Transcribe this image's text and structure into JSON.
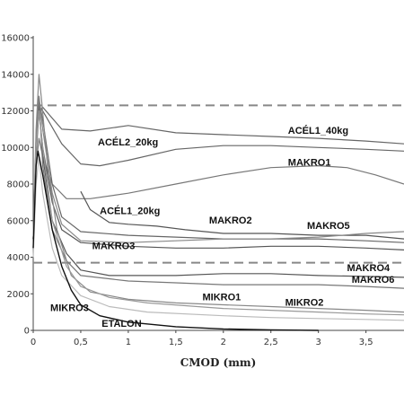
{
  "chart_data": {
    "type": "line",
    "title": "",
    "xlabel": "CMOD (mm)",
    "ylabel": "",
    "xlim": [
      0,
      3.9
    ],
    "ylim": [
      0,
      16000
    ],
    "x_ticks": [
      0,
      0.5,
      1,
      1.5,
      2,
      2.5,
      3,
      3.5
    ],
    "x_tick_labels": [
      "0",
      "0,5",
      "1",
      "1,5",
      "2",
      "2,5",
      "3",
      "3,5"
    ],
    "y_ticks": [
      0,
      2000,
      4000,
      6000,
      8000,
      10000,
      12000,
      14000,
      16000
    ],
    "y_tick_labels": [
      "0",
      "2000",
      "4000",
      "6000",
      "8000",
      "10000",
      "12000",
      "14000",
      "16000"
    ],
    "grid": false,
    "legend": "none",
    "reference_lines": [
      {
        "y": 12300,
        "style": "dashed",
        "color": "#888888"
      },
      {
        "y": 3700,
        "style": "dashed",
        "color": "#888888"
      }
    ],
    "series": [
      {
        "name": "ACÉL1_40kg",
        "color": "#666666",
        "points": [
          [
            0,
            5000
          ],
          [
            0.03,
            9500
          ],
          [
            0.06,
            12000
          ],
          [
            0.1,
            12200
          ],
          [
            0.3,
            11000
          ],
          [
            0.6,
            10900
          ],
          [
            1,
            11200
          ],
          [
            1.5,
            10800
          ],
          [
            2,
            10700
          ],
          [
            2.5,
            10600
          ],
          [
            3,
            10500
          ],
          [
            3.5,
            10350
          ],
          [
            3.9,
            10200
          ]
        ]
      },
      {
        "name": "ACÉL2_20kg",
        "color": "#666666",
        "points": [
          [
            0,
            5000
          ],
          [
            0.03,
            10000
          ],
          [
            0.06,
            12200
          ],
          [
            0.1,
            12000
          ],
          [
            0.3,
            10200
          ],
          [
            0.5,
            9100
          ],
          [
            0.7,
            9000
          ],
          [
            1,
            9300
          ],
          [
            1.5,
            9900
          ],
          [
            2,
            10100
          ],
          [
            2.5,
            10100
          ],
          [
            3,
            10000
          ],
          [
            3.5,
            9900
          ],
          [
            3.9,
            9800
          ]
        ]
      },
      {
        "name": "MAKRO1",
        "color": "#777777",
        "points": [
          [
            0,
            4500
          ],
          [
            0.03,
            9000
          ],
          [
            0.06,
            10500
          ],
          [
            0.1,
            9500
          ],
          [
            0.2,
            8000
          ],
          [
            0.35,
            7200
          ],
          [
            0.6,
            7200
          ],
          [
            1,
            7500
          ],
          [
            1.5,
            8000
          ],
          [
            2,
            8500
          ],
          [
            2.5,
            8900
          ],
          [
            3,
            9000
          ],
          [
            3.3,
            8900
          ],
          [
            3.6,
            8500
          ],
          [
            3.9,
            8000
          ]
        ]
      },
      {
        "name": "ACÉL1_20kg",
        "color": "#555555",
        "points": [
          [
            0.5,
            7600
          ],
          [
            0.6,
            6600
          ],
          [
            0.8,
            5900
          ],
          [
            1,
            5800
          ],
          [
            1.3,
            5700
          ],
          [
            1.6,
            5500
          ],
          [
            2,
            5300
          ],
          [
            2.5,
            5300
          ],
          [
            3,
            5200
          ],
          [
            3.5,
            5200
          ],
          [
            3.9,
            5000
          ]
        ]
      },
      {
        "name": "MAKRO2",
        "color": "#666666",
        "points": [
          [
            0,
            5000
          ],
          [
            0.03,
            10000
          ],
          [
            0.06,
            12600
          ],
          [
            0.1,
            11500
          ],
          [
            0.2,
            8000
          ],
          [
            0.3,
            6200
          ],
          [
            0.5,
            5400
          ],
          [
            1,
            5200
          ],
          [
            1.5,
            5100
          ],
          [
            2,
            5000
          ],
          [
            2.5,
            5000
          ],
          [
            3,
            5000
          ],
          [
            3.5,
            4900
          ],
          [
            3.9,
            4800
          ]
        ]
      },
      {
        "name": "MAKRO5",
        "color": "#888888",
        "points": [
          [
            0,
            5000
          ],
          [
            0.03,
            10500
          ],
          [
            0.06,
            12800
          ],
          [
            0.1,
            11000
          ],
          [
            0.2,
            7500
          ],
          [
            0.3,
            5800
          ],
          [
            0.5,
            4900
          ],
          [
            1,
            4800
          ],
          [
            1.5,
            4900
          ],
          [
            2,
            5000
          ],
          [
            2.5,
            5000
          ],
          [
            3,
            5100
          ],
          [
            3.5,
            5300
          ],
          [
            3.9,
            5400
          ]
        ]
      },
      {
        "name": "MAKRO3",
        "color": "#555555",
        "points": [
          [
            0,
            5000
          ],
          [
            0.03,
            10000
          ],
          [
            0.06,
            12000
          ],
          [
            0.1,
            10000
          ],
          [
            0.2,
            7000
          ],
          [
            0.3,
            5500
          ],
          [
            0.5,
            4800
          ],
          [
            1,
            4600
          ],
          [
            1.5,
            4500
          ],
          [
            2,
            4500
          ],
          [
            2.5,
            4600
          ],
          [
            3,
            4600
          ],
          [
            3.5,
            4500
          ],
          [
            3.9,
            4400
          ]
        ]
      },
      {
        "name": "MAKRO4",
        "color": "#555555",
        "points": [
          [
            0,
            5000
          ],
          [
            0.03,
            10000
          ],
          [
            0.06,
            12500
          ],
          [
            0.1,
            9500
          ],
          [
            0.2,
            6000
          ],
          [
            0.35,
            4200
          ],
          [
            0.5,
            3300
          ],
          [
            0.8,
            3000
          ],
          [
            1.5,
            3000
          ],
          [
            2,
            3100
          ],
          [
            2.5,
            3100
          ],
          [
            3,
            3000
          ],
          [
            3.5,
            2950
          ],
          [
            3.9,
            2900
          ]
        ]
      },
      {
        "name": "MAKRO6",
        "color": "#777777",
        "points": [
          [
            0,
            5000
          ],
          [
            0.03,
            10500
          ],
          [
            0.06,
            12800
          ],
          [
            0.1,
            9000
          ],
          [
            0.2,
            5500
          ],
          [
            0.35,
            3800
          ],
          [
            0.5,
            3000
          ],
          [
            1,
            2700
          ],
          [
            1.5,
            2600
          ],
          [
            2,
            2500
          ],
          [
            2.5,
            2500
          ],
          [
            3,
            2500
          ],
          [
            3.5,
            2400
          ],
          [
            3.9,
            2300
          ]
        ]
      },
      {
        "name": "MIKRO1",
        "color": "#888888",
        "points": [
          [
            0,
            5000
          ],
          [
            0.03,
            11000
          ],
          [
            0.06,
            14000
          ],
          [
            0.09,
            12500
          ],
          [
            0.15,
            9000
          ],
          [
            0.25,
            5500
          ],
          [
            0.4,
            3000
          ],
          [
            0.6,
            2100
          ],
          [
            1,
            1700
          ],
          [
            1.5,
            1500
          ],
          [
            2,
            1400
          ],
          [
            2.5,
            1300
          ],
          [
            3,
            1200
          ],
          [
            3.5,
            1100
          ],
          [
            3.9,
            1000
          ]
        ]
      },
      {
        "name": "MIKRO2",
        "color": "#999999",
        "points": [
          [
            0,
            5000
          ],
          [
            0.03,
            10000
          ],
          [
            0.06,
            12000
          ],
          [
            0.1,
            10000
          ],
          [
            0.2,
            6000
          ],
          [
            0.35,
            3500
          ],
          [
            0.5,
            2400
          ],
          [
            0.8,
            1800
          ],
          [
            1.2,
            1500
          ],
          [
            2,
            1200
          ],
          [
            2.5,
            1100
          ],
          [
            3,
            1000
          ],
          [
            3.5,
            900
          ],
          [
            3.9,
            850
          ]
        ]
      },
      {
        "name": "MIKRO3",
        "color": "#bbbbbb",
        "points": [
          [
            0,
            4000
          ],
          [
            0.03,
            8000
          ],
          [
            0.06,
            9500
          ],
          [
            0.1,
            7500
          ],
          [
            0.2,
            4500
          ],
          [
            0.3,
            3000
          ],
          [
            0.5,
            1900
          ],
          [
            0.8,
            1300
          ],
          [
            1.2,
            1000
          ],
          [
            2,
            800
          ],
          [
            2.5,
            700
          ],
          [
            3,
            650
          ],
          [
            3.5,
            600
          ],
          [
            3.9,
            550
          ]
        ]
      },
      {
        "name": "ETALON",
        "color": "#111111",
        "points": [
          [
            0,
            4500
          ],
          [
            0.03,
            9000
          ],
          [
            0.05,
            9800
          ],
          [
            0.1,
            8500
          ],
          [
            0.2,
            5500
          ],
          [
            0.3,
            3500
          ],
          [
            0.4,
            2200
          ],
          [
            0.5,
            1400
          ],
          [
            0.7,
            800
          ],
          [
            1,
            450
          ],
          [
            1.5,
            200
          ],
          [
            2,
            80
          ],
          [
            2.5,
            30
          ],
          [
            3,
            0
          ]
        ]
      }
    ],
    "annotations": [
      {
        "text": "ACÉL1_40kg",
        "x": 2.68,
        "y": 10750
      },
      {
        "text": "ACÉL2_20kg",
        "x": 0.68,
        "y": 10100
      },
      {
        "text": "MAKRO1",
        "x": 2.68,
        "y": 9000
      },
      {
        "text": "ACÉL1_20kg",
        "x": 0.7,
        "y": 6350
      },
      {
        "text": "MAKRO2",
        "x": 1.85,
        "y": 5850
      },
      {
        "text": "MAKRO5",
        "x": 2.88,
        "y": 5550
      },
      {
        "text": "MAKRO3",
        "x": 0.62,
        "y": 4450
      },
      {
        "text": "MAKRO4",
        "x": 3.3,
        "y": 3250
      },
      {
        "text": "MAKRO6",
        "x": 3.35,
        "y": 2600
      },
      {
        "text": "MIKRO1",
        "x": 1.78,
        "y": 1650
      },
      {
        "text": "MIKRO2",
        "x": 2.65,
        "y": 1350
      },
      {
        "text": "MIKRO3",
        "x": 0.18,
        "y": 1050
      },
      {
        "text": "ETALON",
        "x": 0.72,
        "y": 200
      }
    ]
  }
}
